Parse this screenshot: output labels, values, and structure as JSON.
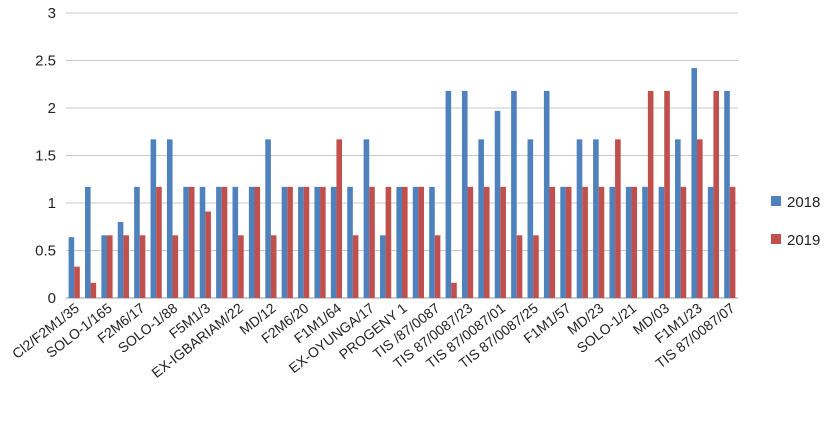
{
  "chart_data": {
    "type": "bar",
    "ylim": [
      0,
      3
    ],
    "y_ticks": [
      0,
      0.5,
      1,
      1.5,
      2,
      2.5,
      3
    ],
    "y_tick_labels": [
      "0",
      "0.5",
      "1",
      "1.5",
      "2",
      "2.5",
      "3"
    ],
    "grid": "horizontal",
    "legend_position": "right",
    "categories": [
      "Cl2/F2M1/35",
      "",
      "SOLO-1/165",
      "",
      "F2M6/17",
      "",
      "SOLO-1/88",
      "",
      "F5M1/3",
      "",
      "EX-IGBARIAM/22",
      "",
      "MD/12",
      "",
      "F2M6/20",
      "",
      "F1M1/64",
      "",
      "EX-OYUNGA/17",
      "",
      "PROGENY 1",
      "",
      "TIS /87/0087",
      "",
      "TIS 87/0087/23",
      "",
      "TIS 87/0087/01",
      "",
      "TIS 87/0087/25",
      "",
      "F1M1/57",
      "",
      "MD/23",
      "",
      "SOLO-1/21",
      "",
      "MD/03",
      "",
      "F1M1/23",
      "",
      "TIS 87/0087/07"
    ],
    "series": [
      {
        "name": "2018",
        "color": "#4f81bd",
        "values": [
          0.64,
          1.17,
          0.66,
          0.8,
          1.17,
          1.67,
          1.67,
          1.17,
          1.17,
          1.17,
          1.17,
          1.17,
          1.67,
          1.17,
          1.17,
          1.17,
          1.17,
          1.17,
          1.67,
          0.66,
          1.17,
          1.17,
          1.17,
          2.18,
          2.18,
          1.67,
          1.97,
          2.18,
          1.67,
          2.18,
          1.17,
          1.67,
          1.67,
          1.17,
          1.17,
          1.17,
          1.17,
          1.67,
          2.42,
          1.17,
          2.18
        ]
      },
      {
        "name": "2019",
        "color": "#c0504d",
        "values": [
          0.33,
          0.16,
          0.66,
          0.66,
          0.66,
          1.17,
          0.66,
          1.17,
          0.91,
          1.17,
          0.66,
          1.17,
          0.66,
          1.17,
          1.17,
          1.17,
          1.67,
          0.66,
          1.17,
          1.17,
          1.17,
          1.17,
          0.66,
          0.16,
          1.17,
          1.17,
          1.17,
          0.66,
          0.66,
          1.17,
          1.17,
          1.17,
          1.17,
          1.67,
          1.17,
          2.18,
          2.18,
          1.17,
          1.67,
          2.18,
          1.17
        ]
      }
    ]
  }
}
